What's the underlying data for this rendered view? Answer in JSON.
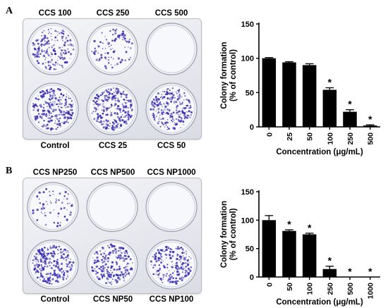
{
  "panels": [
    {
      "letter": "A",
      "plate": {
        "top_labels": [
          "CCS 100",
          "CCS 250",
          "CCS 500"
        ],
        "bottom_labels": [
          "Control",
          "CCS 25",
          "CCS 50"
        ],
        "colony_density": [
          [
            0.7,
            0.35,
            0.0
          ],
          [
            1.0,
            0.95,
            0.9
          ]
        ]
      }
    },
    {
      "letter": "B",
      "plate": {
        "top_labels": [
          "CCS NP250",
          "CCS NP500",
          "CCS NP1000"
        ],
        "bottom_labels": [
          "Control",
          "CCS NP50",
          "CCS NP100"
        ],
        "colony_density": [
          [
            0.25,
            0.0,
            0.0
          ],
          [
            1.0,
            0.85,
            0.8
          ]
        ]
      }
    }
  ],
  "colors": {
    "bar": "#000000",
    "colony": "#3a2fb0",
    "plate_edge": "#b9bcc3"
  },
  "chart_data": [
    {
      "type": "bar",
      "categories": [
        "0",
        "25",
        "50",
        "100",
        "250",
        "500"
      ],
      "values": [
        100,
        94,
        90,
        54,
        22,
        2
      ],
      "errors": [
        1,
        1,
        2,
        3,
        3,
        1
      ],
      "significant": [
        false,
        false,
        false,
        true,
        true,
        true
      ],
      "marker": "*",
      "ylabel": "Colony formation\n(% of control)",
      "xlabel": "Concentration (μg/mL)",
      "ylim": [
        0,
        150
      ],
      "yticks": [
        0,
        50,
        100,
        150
      ],
      "grid": false
    },
    {
      "type": "bar",
      "categories": [
        "0",
        "50",
        "100",
        "250",
        "500",
        "1000"
      ],
      "values": [
        100,
        81,
        75,
        14,
        0,
        0
      ],
      "errors": [
        8,
        2,
        2,
        5,
        0,
        0
      ],
      "significant": [
        false,
        true,
        true,
        true,
        true,
        true
      ],
      "marker": "*",
      "ylabel": "Colony formation\n(% of control)",
      "xlabel": "Concentration (μg/mL)",
      "ylim": [
        0,
        150
      ],
      "yticks": [
        0,
        50,
        100,
        150
      ],
      "grid": false
    }
  ]
}
